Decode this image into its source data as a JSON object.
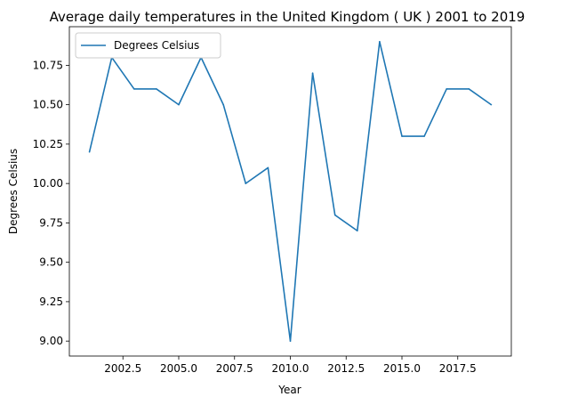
{
  "chart_data": {
    "type": "line",
    "title": "Average daily temperatures in the United Kingdom ( UK ) 2001 to 2019",
    "xlabel": "Year",
    "ylabel": "Degrees Celsius",
    "xlim": [
      2000.1,
      2019.9
    ],
    "ylim": [
      8.905,
      10.995
    ],
    "xticks": [
      2002.5,
      2005.0,
      2007.5,
      2010.0,
      2012.5,
      2015.0,
      2017.5
    ],
    "xtick_labels": [
      "2002.5",
      "2005.0",
      "2007.5",
      "2010.0",
      "2012.5",
      "2015.0",
      "2017.5"
    ],
    "yticks": [
      9.0,
      9.25,
      9.5,
      9.75,
      10.0,
      10.25,
      10.5,
      10.75
    ],
    "ytick_labels": [
      "9.00",
      "9.25",
      "9.50",
      "9.75",
      "10.00",
      "10.25",
      "10.50",
      "10.75"
    ],
    "grid": false,
    "legend_position": "top-left",
    "series": [
      {
        "name": "Degrees Celsius",
        "color": "#1f77b4",
        "x": [
          2001,
          2002,
          2003,
          2004,
          2005,
          2006,
          2007,
          2008,
          2009,
          2010,
          2011,
          2012,
          2013,
          2014,
          2015,
          2016,
          2017,
          2018,
          2019
        ],
        "y": [
          10.2,
          10.8,
          10.6,
          10.6,
          10.5,
          10.8,
          10.5,
          10.0,
          10.1,
          9.0,
          10.7,
          9.8,
          9.7,
          10.9,
          10.3,
          10.3,
          10.6,
          10.6,
          10.5
        ]
      }
    ]
  }
}
